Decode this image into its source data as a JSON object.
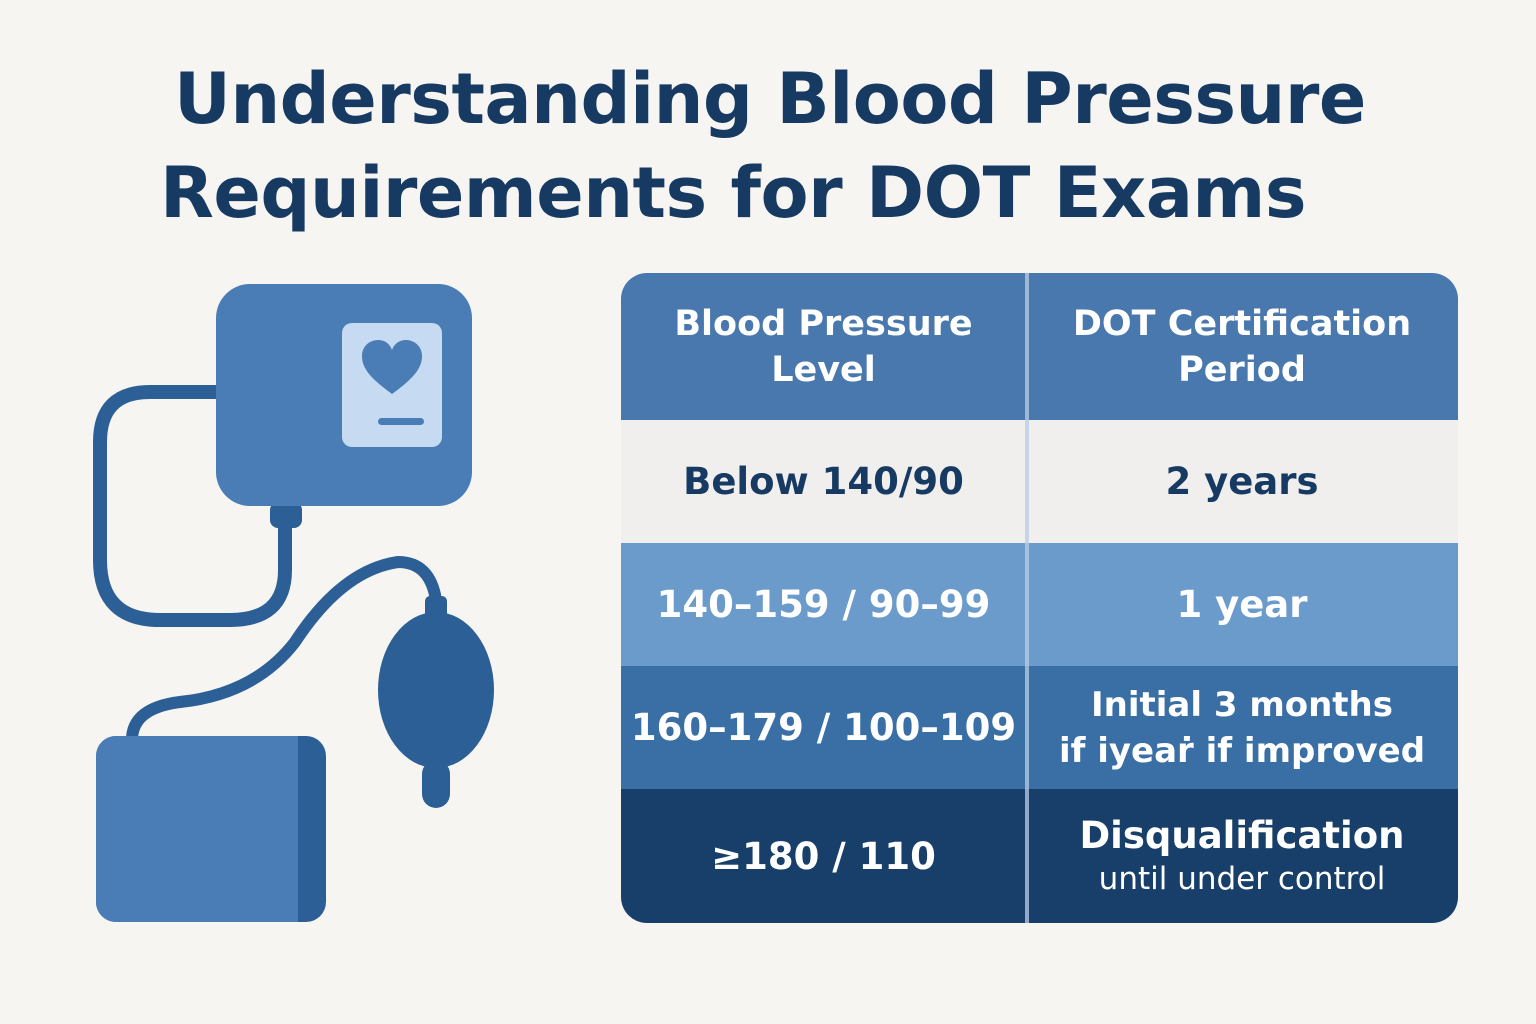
{
  "title": {
    "line1": "Understanding Blood Pressure",
    "line2": "Requirements for DOT Exams"
  },
  "illustration": {
    "icon": "blood-pressure-monitor-icon",
    "colors": {
      "monitor": "#4a7db5",
      "screen": "#c6daf2",
      "tube": "#2c5f96",
      "bulb": "#2c5f96",
      "cuff": "#4a7db5",
      "cuff_edge": "#2c5f96"
    }
  },
  "table": {
    "headers": [
      {
        "line1": "Blood Pressure",
        "line2": "Level"
      },
      {
        "line1": "DOT Certification",
        "line2": "Period"
      }
    ],
    "rows": [
      {
        "level": "Below 140/90",
        "period": "2 years"
      },
      {
        "level": "140–159 / 90–99",
        "period": "1 year"
      },
      {
        "level": "160–179 / 100–109",
        "period_line1": "Initial 3 months",
        "period_line2": "if iyeaṙ if improved"
      },
      {
        "level": "≥180 / 110",
        "period_line1": "Disqualification",
        "period_line2": "until under control"
      }
    ],
    "colors": {
      "header": "#4878ad",
      "row1": "#f0efed",
      "row2": "#6b9bcb",
      "row3": "#3a6fa6",
      "row4": "#173f6a"
    }
  }
}
